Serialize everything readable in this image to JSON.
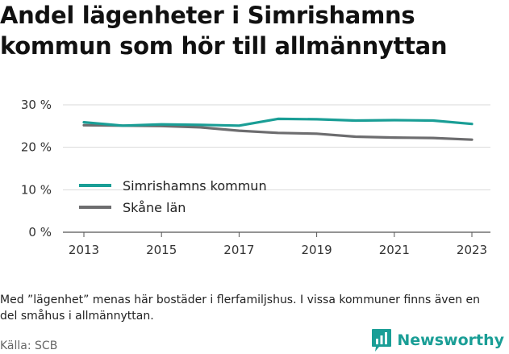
{
  "title_lines": [
    "Andel lägenheter i Simrishamns",
    "kommun som hör till allmännyttan"
  ],
  "note": "Med ”lägenhet” menas här bostäder i flerfamiljshus. I vissa kommuner finns även en del småhus i allmännyttan.",
  "source": "Källa: SCB",
  "brand": {
    "name": "Newsworthy",
    "color": "#1a9e96",
    "icon": "bar-chart-speech-bubble-icon"
  },
  "chart_data": {
    "type": "line",
    "x": [
      2013,
      2014,
      2015,
      2016,
      2017,
      2018,
      2019,
      2020,
      2021,
      2022,
      2023
    ],
    "x_tick_labels": [
      "2013",
      "2015",
      "2017",
      "2019",
      "2021",
      "2023"
    ],
    "x_tick_values": [
      2013,
      2015,
      2017,
      2019,
      2021,
      2023
    ],
    "y_tick_labels": [
      "0 %",
      "10 %",
      "20 %",
      "30 %"
    ],
    "y_tick_values": [
      0,
      10,
      20,
      30
    ],
    "ylim": [
      0,
      30
    ],
    "grid": true,
    "legend_position": "left-middle",
    "series": [
      {
        "name": "Simrishamns kommun",
        "color": "#1a9e96",
        "values": [
          25.9,
          25.1,
          25.4,
          25.3,
          25.1,
          26.7,
          26.6,
          26.3,
          26.4,
          26.3,
          25.5
        ]
      },
      {
        "name": "Skåne län",
        "color": "#6d6d6f",
        "values": [
          25.2,
          25.1,
          25.0,
          24.7,
          23.9,
          23.4,
          23.2,
          22.5,
          22.3,
          22.2,
          21.8
        ]
      }
    ]
  }
}
